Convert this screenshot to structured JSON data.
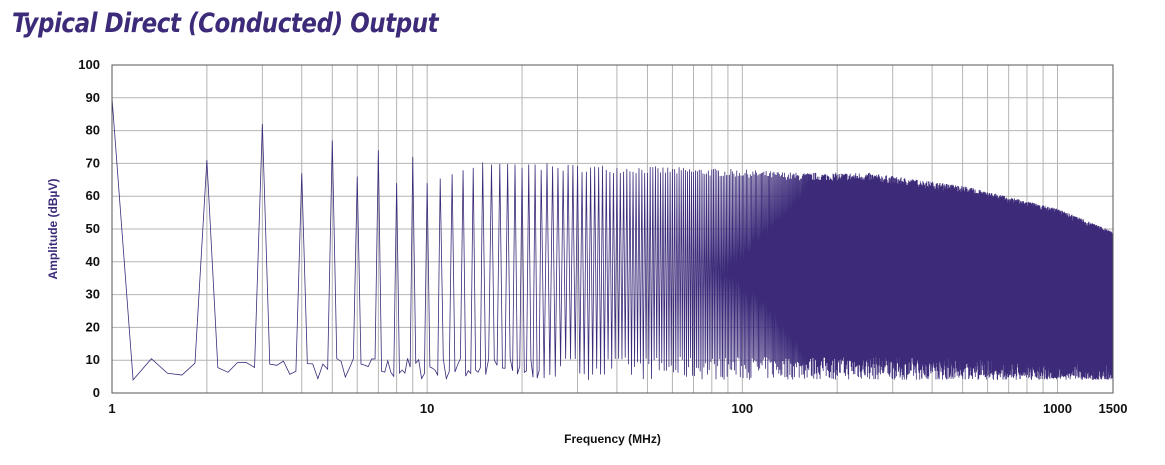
{
  "title": "Typical Direct (Conducted) Output",
  "colors": {
    "title": "#3d2b7a",
    "trace": "#3d2b7a",
    "ylabel": "#3d2b7a",
    "grid": "#b4b4b4",
    "frame": "#555555"
  },
  "chart_data": {
    "type": "line",
    "title": "Typical Direct (Conducted) Output",
    "xlabel": "Frequency (MHz)",
    "ylabel": "Amplitude (dBµV)",
    "xscale": "log",
    "xlim": [
      1,
      1500
    ],
    "ylim": [
      0,
      100
    ],
    "x_tick_labels": [
      "1",
      "10",
      "100",
      "1000",
      "1500"
    ],
    "x_tick_values": [
      1,
      10,
      100,
      1000,
      1500
    ],
    "y_tick_values": [
      0,
      10,
      20,
      30,
      40,
      50,
      60,
      70,
      80,
      90,
      100
    ],
    "grid": true,
    "legend": "none",
    "fundamental_mhz": 1,
    "harmonic_peaks": [
      {
        "f": 1,
        "dbuv": 90
      },
      {
        "f": 2,
        "dbuv": 71
      },
      {
        "f": 3,
        "dbuv": 82
      },
      {
        "f": 4,
        "dbuv": 67
      },
      {
        "f": 5,
        "dbuv": 77
      },
      {
        "f": 6,
        "dbuv": 66
      },
      {
        "f": 7,
        "dbuv": 74
      },
      {
        "f": 8,
        "dbuv": 64
      },
      {
        "f": 9,
        "dbuv": 72
      },
      {
        "f": 10,
        "dbuv": 64
      },
      {
        "f": 15,
        "dbuv": 70
      },
      {
        "f": 20,
        "dbuv": 69
      },
      {
        "f": 50,
        "dbuv": 68
      },
      {
        "f": 100,
        "dbuv": 67
      },
      {
        "f": 150,
        "dbuv": 66
      },
      {
        "f": 250,
        "dbuv": 66
      },
      {
        "f": 500,
        "dbuv": 62
      },
      {
        "f": 1000,
        "dbuv": 55
      },
      {
        "f": 1500,
        "dbuv": 48
      }
    ],
    "noise_floor_dbuv": [
      4,
      11
    ]
  }
}
